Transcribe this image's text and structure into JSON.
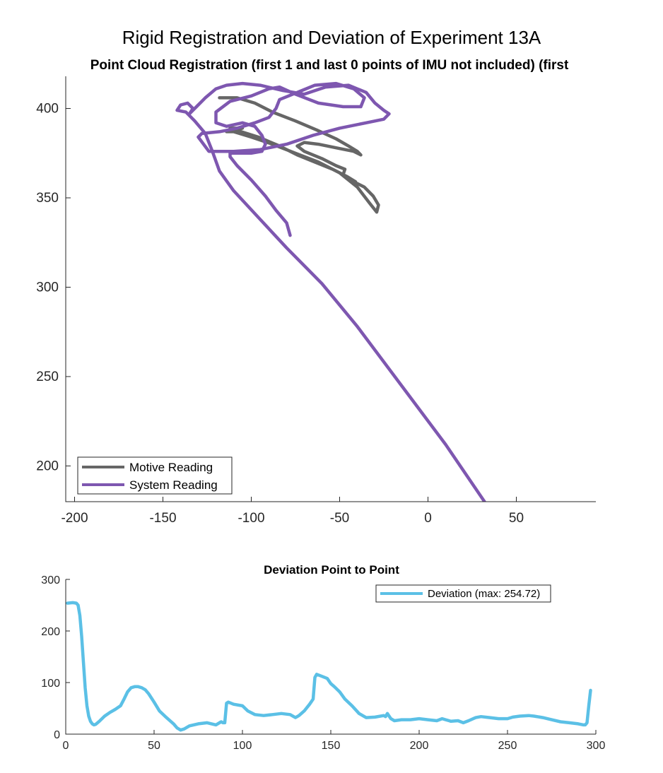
{
  "figure": {
    "suptitle": "Rigid Registration and Deviation of Experiment 13A",
    "colors": {
      "motive": "#666666",
      "system": "#7e57b0",
      "deviation": "#5bc0e6"
    }
  },
  "chart_data": [
    {
      "type": "line",
      "title": "Point Cloud Registration (first 1 and last 0 points of IMU not included) (first",
      "xlabel": "",
      "ylabel": "",
      "xlim": [
        -205,
        95
      ],
      "ylim": [
        180,
        418
      ],
      "xticks": [
        -200,
        -150,
        -100,
        -50,
        0,
        50
      ],
      "xtick_labels": [
        "-200",
        "-150",
        "-100",
        "-50",
        "0",
        "50"
      ],
      "yticks": [
        200,
        250,
        300,
        350,
        400
      ],
      "ytick_labels": [
        "200",
        "250",
        "300",
        "350",
        "400"
      ],
      "grid": false,
      "legend": {
        "location": "bottom-left",
        "entries": [
          "Motive Reading",
          "System Reading"
        ]
      },
      "series": [
        {
          "name": "Motive Reading",
          "color": "#666666",
          "x": [
            -118,
            -108,
            -98,
            -88,
            -75,
            -63,
            -52,
            -45,
            -40,
            -38,
            -42,
            -52,
            -62,
            -70,
            -74,
            -70,
            -60,
            -52,
            -47,
            -48,
            -44,
            -36,
            -31,
            -28,
            -29,
            -33,
            -40,
            -50,
            -62,
            -75,
            -88,
            -100,
            -110,
            -114,
            -105,
            -112,
            -96,
            -84,
            -74,
            -64,
            -54,
            -46,
            -41
          ],
          "y": [
            406,
            406,
            403,
            398,
            393,
            388,
            383,
            379,
            376,
            374,
            376,
            378,
            380,
            381,
            379,
            376,
            372,
            368,
            366,
            363,
            360,
            356,
            351,
            346,
            342,
            347,
            356,
            364,
            370,
            375,
            380,
            384,
            387,
            387,
            389,
            389,
            384,
            379,
            374,
            370,
            366,
            362,
            359
          ]
        },
        {
          "name": "System Reading",
          "color": "#7e57b0",
          "x": [
            32,
            10,
            -15,
            -40,
            -60,
            -80,
            -95,
            -110,
            -118,
            -122,
            -126,
            -132,
            -137,
            -142,
            -140,
            -136,
            -133,
            -135,
            -131,
            -126,
            -120,
            -114,
            -105,
            -95,
            -82,
            -70,
            -58,
            -45,
            -35,
            -30,
            -25,
            -22,
            -25,
            -35,
            -50,
            -65,
            -80,
            -95,
            -110,
            -124,
            -130,
            -128,
            -118,
            -108,
            -98,
            -90,
            -86,
            -84,
            -74,
            -64,
            -52,
            -42,
            -36,
            -38,
            -48,
            -62,
            -75,
            -84,
            -90,
            -100,
            -112,
            -120,
            -120,
            -114,
            -105,
            -98,
            -94,
            -92,
            -94,
            -100,
            -108,
            -112,
            -112,
            -108,
            -100,
            -92,
            -86,
            -80,
            -78
          ],
          "y": [
            180,
            212,
            245,
            278,
            302,
            322,
            338,
            354,
            365,
            376,
            386,
            393,
            398,
            399,
            402,
            403,
            400,
            397,
            401,
            406,
            411,
            413,
            414,
            413,
            410,
            408,
            412,
            413,
            409,
            403,
            399,
            397,
            394,
            392,
            389,
            385,
            380,
            377,
            376,
            376,
            384,
            386,
            387,
            389,
            392,
            395,
            400,
            405,
            409,
            413,
            414,
            411,
            406,
            401,
            401,
            403,
            408,
            412,
            411,
            407,
            404,
            398,
            392,
            390,
            392,
            390,
            385,
            380,
            376,
            375,
            375,
            375,
            373,
            368,
            360,
            351,
            343,
            336,
            329
          ]
        }
      ]
    },
    {
      "type": "line",
      "title": "Deviation Point to Point",
      "xlabel": "",
      "ylabel": "",
      "xlim": [
        0,
        300
      ],
      "ylim": [
        0,
        300
      ],
      "xticks": [
        0,
        50,
        100,
        150,
        200,
        250,
        300
      ],
      "xtick_labels": [
        "0",
        "50",
        "100",
        "150",
        "200",
        "250",
        "300"
      ],
      "yticks": [
        0,
        100,
        200,
        300
      ],
      "ytick_labels": [
        "0",
        "100",
        "200",
        "300"
      ],
      "grid": false,
      "legend": {
        "location": "top-right",
        "entries": [
          "Deviation (max: 254.72)"
        ]
      },
      "series": [
        {
          "name": "Deviation (max: 254.72)",
          "color": "#5bc0e6",
          "x": [
            1,
            4,
            6,
            7,
            8,
            9,
            10,
            11,
            12,
            13,
            14,
            15,
            16,
            17,
            19,
            22,
            25,
            28,
            31,
            33,
            35,
            37,
            39,
            41,
            43,
            45,
            47,
            50,
            53,
            57,
            61,
            63,
            65,
            67,
            70,
            75,
            80,
            85,
            87,
            88,
            89,
            90,
            91,
            92,
            95,
            100,
            103,
            107,
            112,
            117,
            122,
            127,
            130,
            132,
            135,
            138,
            140,
            141,
            142,
            145,
            148,
            150,
            152,
            155,
            158,
            162,
            166,
            170,
            175,
            180,
            181,
            182,
            184,
            186,
            190,
            195,
            200,
            205,
            210,
            213,
            215,
            218,
            222,
            225,
            228,
            232,
            235,
            240,
            245,
            250,
            253,
            257,
            262,
            265,
            270,
            275,
            280,
            285,
            290,
            293,
            294,
            295,
            296,
            297
          ],
          "y": [
            254,
            255,
            254,
            250,
            230,
            190,
            140,
            90,
            55,
            35,
            25,
            20,
            18,
            19,
            25,
            35,
            42,
            48,
            55,
            68,
            82,
            90,
            92,
            92,
            90,
            86,
            78,
            62,
            45,
            32,
            20,
            12,
            8,
            10,
            16,
            20,
            22,
            18,
            22,
            24,
            22,
            22,
            60,
            62,
            58,
            55,
            45,
            38,
            36,
            38,
            40,
            38,
            32,
            36,
            45,
            58,
            68,
            110,
            116,
            112,
            108,
            98,
            92,
            82,
            68,
            55,
            40,
            32,
            33,
            36,
            34,
            40,
            30,
            26,
            28,
            28,
            30,
            28,
            26,
            30,
            28,
            25,
            26,
            22,
            26,
            32,
            34,
            32,
            30,
            30,
            33,
            35,
            36,
            35,
            32,
            28,
            24,
            22,
            20,
            18,
            18,
            22,
            55,
            85
          ]
        }
      ]
    }
  ]
}
